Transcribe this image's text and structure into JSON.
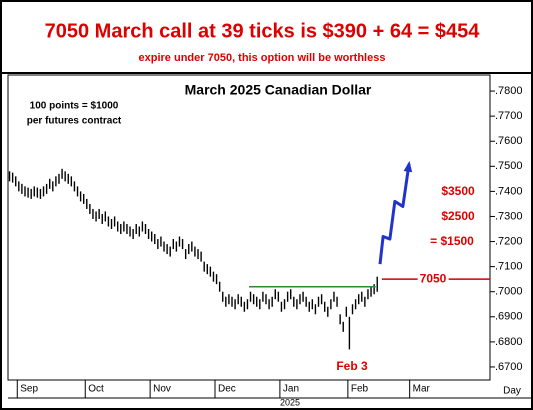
{
  "chart_data": {
    "type": "range-bar",
    "headline": "7050 March call at 39 ticks is $390 + 64 = $454",
    "subheadline": "expire under 7050, this option will be worthless",
    "title": "March 2025 Canadian Dollar",
    "note": [
      "100 points = $1000",
      "per futures contract"
    ],
    "annotations": [
      "$3500",
      "$2500",
      "= $1500",
      "Feb 3"
    ],
    "x_label": "Day",
    "year_label": "2025",
    "color": "#000000",
    "high": [
      0.748,
      0.7475,
      0.746,
      0.744,
      0.743,
      0.742,
      0.7415,
      0.741,
      0.742,
      0.7415,
      0.741,
      0.742,
      0.743,
      0.745,
      0.744,
      0.746,
      0.747,
      0.749,
      0.748,
      0.747,
      0.746,
      0.744,
      0.742,
      0.74,
      0.739,
      0.737,
      0.735,
      0.733,
      0.732,
      0.733,
      0.731,
      0.732,
      0.73,
      0.729,
      0.73,
      0.728,
      0.727,
      0.728,
      0.727,
      0.726,
      0.725,
      0.727,
      0.726,
      0.728,
      0.727,
      0.725,
      0.724,
      0.723,
      0.721,
      0.722,
      0.72,
      0.719,
      0.718,
      0.721,
      0.72,
      0.722,
      0.721,
      0.717,
      0.719,
      0.72,
      0.718,
      0.717,
      0.716,
      0.712,
      0.711,
      0.71,
      0.708,
      0.707,
      0.704,
      0.7,
      0.698,
      0.699,
      0.698,
      0.697,
      0.699,
      0.698,
      0.696,
      0.697,
      0.7,
      0.699,
      0.698,
      0.697,
      0.7,
      0.699,
      0.697,
      0.698,
      0.701,
      0.7,
      0.696,
      0.697,
      0.7,
      0.701,
      0.698,
      0.697,
      0.699,
      0.7,
      0.698,
      0.696,
      0.697,
      0.695,
      0.698,
      0.699,
      0.696,
      0.694,
      0.697,
      0.7,
      0.698,
      0.691,
      0.688,
      0.694,
      0.69,
      0.695,
      0.697,
      0.699,
      0.7,
      0.698,
      0.701,
      0.702,
      0.703,
      0.706
    ],
    "low": [
      0.744,
      0.7435,
      0.742,
      0.74,
      0.739,
      0.738,
      0.7375,
      0.737,
      0.738,
      0.7375,
      0.737,
      0.738,
      0.739,
      0.741,
      0.74,
      0.742,
      0.743,
      0.745,
      0.744,
      0.743,
      0.742,
      0.74,
      0.738,
      0.736,
      0.735,
      0.733,
      0.731,
      0.729,
      0.728,
      0.729,
      0.727,
      0.728,
      0.726,
      0.725,
      0.726,
      0.724,
      0.723,
      0.724,
      0.723,
      0.722,
      0.721,
      0.723,
      0.722,
      0.724,
      0.723,
      0.721,
      0.72,
      0.719,
      0.717,
      0.718,
      0.716,
      0.715,
      0.714,
      0.717,
      0.716,
      0.718,
      0.717,
      0.713,
      0.715,
      0.716,
      0.714,
      0.713,
      0.712,
      0.708,
      0.707,
      0.706,
      0.704,
      0.703,
      0.7,
      0.696,
      0.694,
      0.695,
      0.694,
      0.693,
      0.695,
      0.694,
      0.692,
      0.693,
      0.696,
      0.695,
      0.694,
      0.693,
      0.696,
      0.695,
      0.693,
      0.694,
      0.697,
      0.696,
      0.692,
      0.693,
      0.696,
      0.697,
      0.694,
      0.693,
      0.695,
      0.696,
      0.694,
      0.692,
      0.693,
      0.691,
      0.694,
      0.695,
      0.692,
      0.69,
      0.693,
      0.696,
      0.694,
      0.687,
      0.684,
      0.69,
      0.677,
      0.691,
      0.693,
      0.695,
      0.696,
      0.694,
      0.697,
      0.698,
      0.699,
      0.7
    ],
    "support": {
      "value": 0.702,
      "x": [
        78,
        119
      ],
      "color": "#2e8b2e"
    },
    "strike": {
      "value": 0.705,
      "label": "7050",
      "x": [
        121,
        156
      ],
      "color": "#cc0000"
    },
    "projection": {
      "color": "#2233cc",
      "x": [
        120.4,
        121.4,
        123.6,
        125.2,
        127.8,
        129.8
      ],
      "y": [
        0.711,
        0.722,
        0.721,
        0.736,
        0.734,
        0.751
      ]
    },
    "xlim": [
      0,
      156
    ],
    "xticks": [
      {
        "value": 3,
        "label": "Sep"
      },
      {
        "value": 25,
        "label": "Oct"
      },
      {
        "value": 46,
        "label": "Nov"
      },
      {
        "value": 67,
        "label": "Dec"
      },
      {
        "value": 88,
        "label": "Jan"
      },
      {
        "value": 110,
        "label": "Feb"
      },
      {
        "value": 130,
        "label": "Mar"
      }
    ],
    "ylim": [
      0.6648,
      0.7864
    ],
    "yticks": [
      {
        "value": 0.67,
        "label": ".6700"
      },
      {
        "value": 0.68,
        "label": ".6800"
      },
      {
        "value": 0.69,
        "label": ".6900"
      },
      {
        "value": 0.7,
        "label": ".7000"
      },
      {
        "value": 0.71,
        "label": ".7100"
      },
      {
        "value": 0.72,
        "label": ".7200"
      },
      {
        "value": 0.73,
        "label": ".7300"
      },
      {
        "value": 0.74,
        "label": ".7400"
      },
      {
        "value": 0.75,
        "label": ".7500"
      },
      {
        "value": 0.76,
        "label": ".7600"
      },
      {
        "value": 0.77,
        "label": ".7700"
      },
      {
        "value": 0.78,
        "label": ".7800"
      }
    ]
  }
}
